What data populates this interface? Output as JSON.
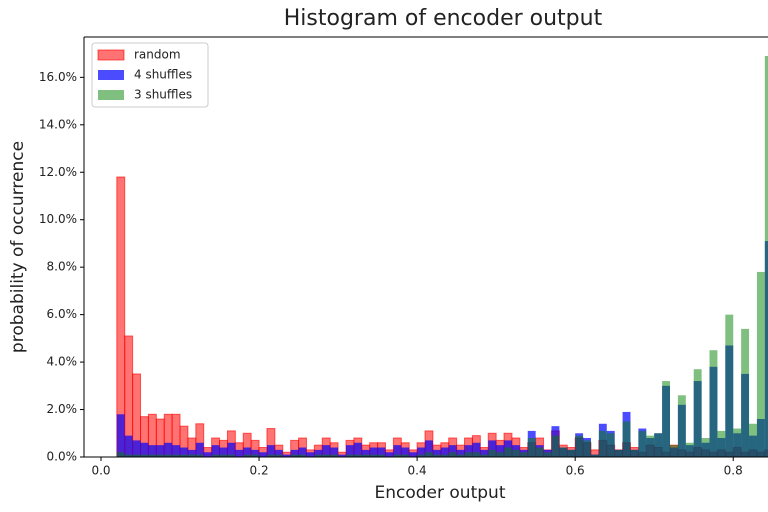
{
  "chart_data": {
    "type": "histogram",
    "title": "Histogram of encoder output",
    "x_label": "Encoder output",
    "y_label": "probability of occurrence",
    "bins": [
      0.02,
      0.03,
      0.04,
      0.05,
      0.06,
      0.07,
      0.08,
      0.09,
      0.1,
      0.11,
      0.12,
      0.13,
      0.14,
      0.15,
      0.16,
      0.17,
      0.18,
      0.19,
      0.2,
      0.21,
      0.22,
      0.23,
      0.24,
      0.25,
      0.26,
      0.27,
      0.28,
      0.29,
      0.3,
      0.31,
      0.32,
      0.33,
      0.34,
      0.35,
      0.36,
      0.37,
      0.38,
      0.39,
      0.4,
      0.41,
      0.42,
      0.43,
      0.44,
      0.45,
      0.46,
      0.47,
      0.48,
      0.49,
      0.5,
      0.51,
      0.52,
      0.53,
      0.54,
      0.55,
      0.56,
      0.57,
      0.58,
      0.59,
      0.6,
      0.61,
      0.62,
      0.63,
      0.64,
      0.65,
      0.66,
      0.67,
      0.68,
      0.69,
      0.7,
      0.71,
      0.72,
      0.73,
      0.74,
      0.75,
      0.76,
      0.77,
      0.78,
      0.79,
      0.8,
      0.81,
      0.82,
      0.83,
      0.84,
      0.85
    ],
    "series": [
      {
        "name": "random",
        "color": "#ff0000",
        "values": [
          11.8,
          5.1,
          3.5,
          1.7,
          1.8,
          1.6,
          1.8,
          1.8,
          1.3,
          0.8,
          1.4,
          0.4,
          0.8,
          0.7,
          1.1,
          0.6,
          1.0,
          0.7,
          0.4,
          1.2,
          0.5,
          0.2,
          0.7,
          0.8,
          0.3,
          0.5,
          0.8,
          0.6,
          0.2,
          0.7,
          0.8,
          0.5,
          0.6,
          0.6,
          0.3,
          0.8,
          0.6,
          0.3,
          0.6,
          1.1,
          0.5,
          0.6,
          0.8,
          0.5,
          0.8,
          0.9,
          0.4,
          1.0,
          0.7,
          1.0,
          0.8,
          0.4,
          0.6,
          0.8,
          0.3,
          1.1,
          0.5,
          0.4,
          0.8,
          0.6,
          0.3,
          0.7,
          0.5,
          0.3,
          0.6,
          0.4,
          0.2,
          0.5,
          0.4,
          0.2,
          0.5,
          0.3,
          0.2,
          0.4,
          0.3,
          0.2,
          0.3,
          0.2,
          0.4,
          0.2,
          0.3,
          0.2,
          0.3
        ]
      },
      {
        "name": "4 shuffles",
        "color": "#0000ff",
        "values": [
          1.8,
          0.9,
          0.7,
          0.6,
          0.5,
          0.5,
          0.6,
          0.5,
          0.4,
          0.3,
          0.6,
          0.2,
          0.5,
          0.4,
          0.6,
          0.3,
          0.4,
          0.3,
          0.2,
          0.5,
          0.3,
          0.1,
          0.3,
          0.4,
          0.2,
          0.3,
          0.5,
          0.4,
          0.1,
          0.5,
          0.6,
          0.3,
          0.4,
          0.4,
          0.2,
          0.5,
          0.4,
          0.2,
          0.4,
          0.7,
          0.3,
          0.4,
          0.5,
          0.3,
          0.5,
          0.6,
          0.3,
          0.7,
          0.5,
          0.7,
          0.5,
          0.3,
          1.1,
          0.5,
          0.3,
          1.3,
          0.4,
          0.3,
          1.0,
          0.8,
          0.1,
          1.4,
          1.1,
          0.3,
          1.9,
          0.3,
          1.2,
          0.8,
          1.0,
          3.0,
          0.4,
          2.2,
          0.5,
          3.2,
          0.6,
          3.8,
          0.8,
          4.7,
          1.0,
          3.5,
          0.9,
          1.6,
          9.1
        ]
      },
      {
        "name": "3 shuffles",
        "color": "#008000",
        "values": [
          0.2,
          0.1,
          0.1,
          0.1,
          0.1,
          0.1,
          0.1,
          0.1,
          0.1,
          0.1,
          0.1,
          0.0,
          0.1,
          0.1,
          0.1,
          0.0,
          0.1,
          0.1,
          0.0,
          0.1,
          0.1,
          0.0,
          0.1,
          0.1,
          0.0,
          0.1,
          0.1,
          0.1,
          0.0,
          0.1,
          0.1,
          0.1,
          0.1,
          0.1,
          0.0,
          0.1,
          0.1,
          0.0,
          0.1,
          0.2,
          0.1,
          0.1,
          0.2,
          0.1,
          0.2,
          0.2,
          0.1,
          0.3,
          0.2,
          0.4,
          0.3,
          0.2,
          0.8,
          0.4,
          0.2,
          0.9,
          0.4,
          0.3,
          0.9,
          0.7,
          0.1,
          1.1,
          1.0,
          0.3,
          1.5,
          0.3,
          1.1,
          0.9,
          1.0,
          3.2,
          0.5,
          2.6,
          0.6,
          3.7,
          0.8,
          4.5,
          1.1,
          6.0,
          1.2,
          5.4,
          1.4,
          7.8,
          16.9
        ]
      }
    ],
    "xlim": [
      -0.0215,
      0.844
    ],
    "ylim": [
      0,
      17.7
    ],
    "xticks": [
      {
        "value": 0,
        "label": "0.0"
      },
      0.2,
      0.4,
      0.6,
      0.8
    ],
    "yticks": [
      {
        "value": 0,
        "label": "0.0%"
      },
      {
        "value": 2,
        "label": "2.0%"
      },
      {
        "value": 4,
        "label": "4.0%"
      },
      {
        "value": 6,
        "label": "6.0%"
      },
      {
        "value": 8,
        "label": "8.0%"
      },
      {
        "value": 10,
        "label": "10.0%"
      },
      {
        "value": 12,
        "label": "12.0%"
      },
      {
        "value": 14,
        "label": "14.0%"
      },
      {
        "value": 16,
        "label": "16.0%"
      }
    ],
    "legend": "upper left",
    "grid": false
  }
}
